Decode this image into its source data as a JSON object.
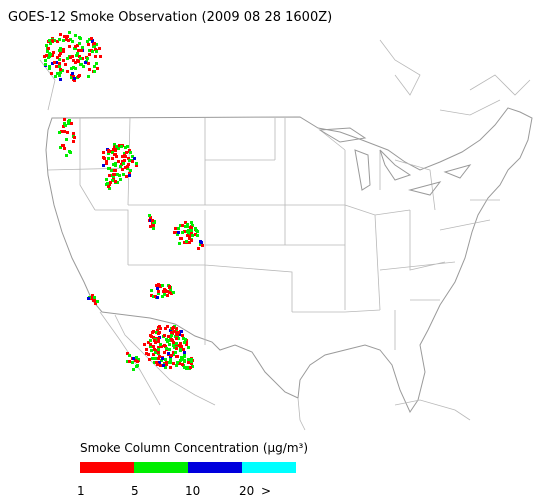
{
  "title": "GOES-12 Smoke Observation (2009 08 28  1600Z)",
  "legend": {
    "label": "Smoke Column Concentration (μg/m³)",
    "segments": [
      {
        "color": "#ff0000"
      },
      {
        "color": "#00ee00"
      },
      {
        "color": "#0000dd"
      },
      {
        "color": "#00ffff"
      }
    ],
    "ticks": [
      "1",
      "5",
      "10",
      "20",
      ">"
    ]
  }
}
